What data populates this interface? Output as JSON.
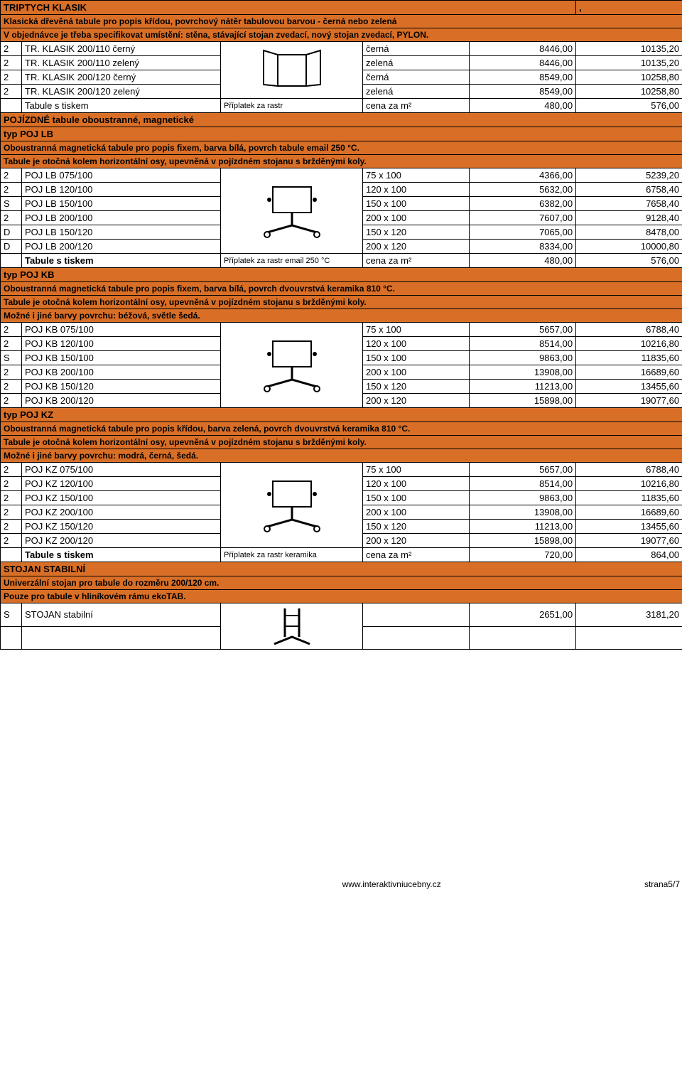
{
  "theme": {
    "orange": "#d96f27",
    "black": "#000000",
    "white": "#ffffff"
  },
  "sec1": {
    "title": "TRIPTYCH KLASIK",
    "desc1": "Klasická dřevěná tabule pro popis křídou, povrchový nátěr tabulovou barvou - černá nebo zelená",
    "desc2": "V objednávce je třeba specifikovat umístění: stěna, stávající stojan zvedací, nový stojan zvedací, PYLON.",
    "rows": [
      {
        "c": "2",
        "name": "TR. KLASIK 200/110 černý",
        "col": "černá",
        "p1": "8446,00",
        "p2": "10135,20"
      },
      {
        "c": "2",
        "name": "TR. KLASIK 200/110 zelený",
        "col": "zelená",
        "p1": "8446,00",
        "p2": "10135,20"
      },
      {
        "c": "2",
        "name": "TR. KLASIK 200/120 černý",
        "col": "černá",
        "p1": "8549,00",
        "p2": "10258,80"
      },
      {
        "c": "2",
        "name": "TR. KLASIK 200/120 zelený",
        "col": "zelená",
        "p1": "8549,00",
        "p2": "10258,80"
      }
    ],
    "sur": {
      "l1": "Tabule s tiskem",
      "l2": "Příplatek za rastr",
      "l3": "cena za m²",
      "p1": "480,00",
      "p2": "576,00"
    }
  },
  "sec2": {
    "title": "POJÍZDNÉ tabule oboustranné, magnetické",
    "sub": "typ POJ LB",
    "desc1": "Oboustranná magnetická tabule pro popis fixem, barva bílá, povrch tabule email 250 °C.",
    "desc2": "Tabule je otočná kolem horizontální osy, upevněná v pojízdném stojanu s bržděnými koly.",
    "rows": [
      {
        "c": "2",
        "name": "POJ LB 075/100",
        "dim": "75 x 100",
        "p1": "4366,00",
        "p2": "5239,20"
      },
      {
        "c": "2",
        "name": "POJ LB 120/100",
        "dim": "120 x 100",
        "p1": "5632,00",
        "p2": "6758,40"
      },
      {
        "c": "S",
        "name": "POJ LB 150/100",
        "dim": "150 x 100",
        "p1": "6382,00",
        "p2": "7658,40"
      },
      {
        "c": "2",
        "name": "POJ LB 200/100",
        "dim": "200 x 100",
        "p1": "7607,00",
        "p2": "9128,40"
      },
      {
        "c": "D",
        "name": "POJ LB 150/120",
        "dim": "150 x 120",
        "p1": "7065,00",
        "p2": "8478,00"
      },
      {
        "c": "D",
        "name": "POJ LB 200/120",
        "dim": "200 x 120",
        "p1": "8334,00",
        "p2": "10000,80"
      }
    ],
    "sur": {
      "l1": "Tabule s tiskem",
      "l2": "Příplatek za rastr email 250 °C",
      "l3": "cena za m²",
      "p1": "480,00",
      "p2": "576,00"
    }
  },
  "sec3": {
    "sub": "typ POJ KB",
    "desc1": "Oboustranná magnetická tabule pro popis fixem, barva bílá, povrch dvouvrstvá keramika 810 °C.",
    "desc2": "Tabule je otočná kolem horizontální osy, upevněná v pojízdném stojanu s bržděnými koly.",
    "desc3": "Možné i jiné barvy povrchu: béžová, světle šedá.",
    "rows": [
      {
        "c": "2",
        "name": "POJ KB 075/100",
        "dim": "75 x 100",
        "p1": "5657,00",
        "p2": "6788,40"
      },
      {
        "c": "2",
        "name": "POJ KB 120/100",
        "dim": "120 x 100",
        "p1": "8514,00",
        "p2": "10216,80"
      },
      {
        "c": "S",
        "name": "POJ KB 150/100",
        "dim": "150 x 100",
        "p1": "9863,00",
        "p2": "11835,60"
      },
      {
        "c": "2",
        "name": "POJ KB 200/100",
        "dim": "200 x 100",
        "p1": "13908,00",
        "p2": "16689,60"
      },
      {
        "c": "2",
        "name": "POJ KB 150/120",
        "dim": "150 x 120",
        "p1": "11213,00",
        "p2": "13455,60"
      },
      {
        "c": "2",
        "name": "POJ KB 200/120",
        "dim": "200 x 120",
        "p1": "15898,00",
        "p2": "19077,60"
      }
    ]
  },
  "sec4": {
    "sub": "typ POJ KZ",
    "desc1": "Oboustranná magnetická tabule pro popis křídou, barva zelená, povrch dvouvrstvá keramika 810 °C.",
    "desc2": "Tabule je otočná kolem horizontální osy, upevněná v pojízdném stojanu s bržděnými koly.",
    "desc3": "Možné i jiné barvy povrchu: modrá, černá, šedá.",
    "rows": [
      {
        "c": "2",
        "name": "POJ KZ 075/100",
        "dim": "75 x 100",
        "p1": "5657,00",
        "p2": "6788,40"
      },
      {
        "c": "2",
        "name": "POJ KZ 120/100",
        "dim": "120 x 100",
        "p1": "8514,00",
        "p2": "10216,80"
      },
      {
        "c": "2",
        "name": "POJ KZ 150/100",
        "dim": "150 x 100",
        "p1": "9863,00",
        "p2": "11835,60"
      },
      {
        "c": "2",
        "name": "POJ KZ 200/100",
        "dim": "200 x 100",
        "p1": "13908,00",
        "p2": "16689,60"
      },
      {
        "c": "2",
        "name": "POJ KZ 150/120",
        "dim": "150 x 120",
        "p1": "11213,00",
        "p2": "13455,60"
      },
      {
        "c": "2",
        "name": "POJ KZ 200/120",
        "dim": "200 x 120",
        "p1": "15898,00",
        "p2": "19077,60"
      }
    ],
    "sur": {
      "l1": "Tabule s tiskem",
      "l2": "Příplatek za rastr keramika",
      "l3": "cena za m²",
      "p1": "720,00",
      "p2": "864,00"
    }
  },
  "sec5": {
    "title": "STOJAN STABILNÍ",
    "desc1": "Univerzální stojan pro tabule do rozměru 200/120 cm.",
    "desc2": "Pouze pro tabule v hliníkovém rámu ekoTAB.",
    "row": {
      "c": "S",
      "name": "STOJAN stabilní",
      "p1": "2651,00",
      "p2": "3181,20"
    }
  },
  "footer": {
    "url": "www.interaktivniucebny.cz",
    "page": "strana5/7"
  }
}
